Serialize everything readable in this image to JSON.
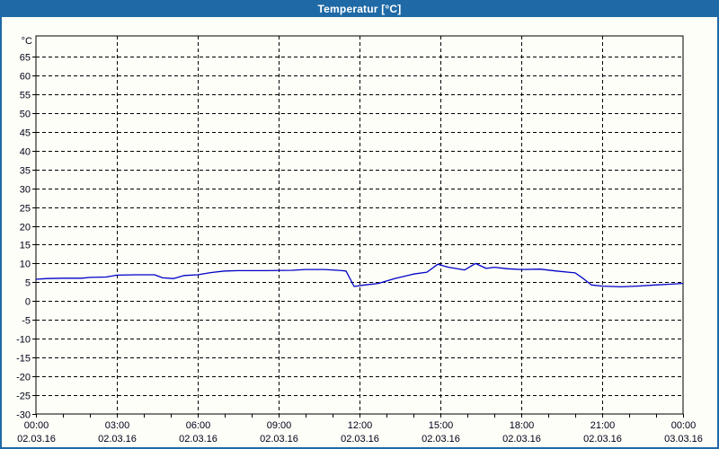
{
  "window": {
    "title": "Temperatur [°C]"
  },
  "colors": {
    "titlebar": "#1F6AA6",
    "window_border": "#1F6AA6",
    "background": "#FCFEF7",
    "plot_bg": "#FCFEF7",
    "axis": "#000000",
    "grid": "#000000",
    "label": "#000018",
    "line": "#0000C8"
  },
  "chart_data": {
    "type": "line",
    "title": "Temperatur [°C]",
    "y_unit": "°C",
    "ylim": [
      -30,
      70.5
    ],
    "y_ticks": [
      -30,
      -25,
      -20,
      -15,
      -10,
      -5,
      0,
      5,
      10,
      15,
      20,
      25,
      30,
      35,
      40,
      45,
      50,
      55,
      60,
      65
    ],
    "grid": true,
    "legend_position": "none",
    "x_hours_range": [
      0,
      24
    ],
    "x_minor_tick_hours": 1,
    "x_major_ticks": [
      {
        "hour": 0,
        "time": "00:00",
        "date": "02.03.16"
      },
      {
        "hour": 3,
        "time": "03:00",
        "date": "02.03.16"
      },
      {
        "hour": 6,
        "time": "06:00",
        "date": "02.03.16"
      },
      {
        "hour": 9,
        "time": "09:00",
        "date": "02.03.16"
      },
      {
        "hour": 12,
        "time": "12:00",
        "date": "02.03.16"
      },
      {
        "hour": 15,
        "time": "15:00",
        "date": "02.03.16"
      },
      {
        "hour": 18,
        "time": "18:00",
        "date": "02.03.16"
      },
      {
        "hour": 21,
        "time": "21:00",
        "date": "02.03.16"
      },
      {
        "hour": 24,
        "time": "00:00",
        "date": "03.03.16"
      }
    ],
    "series": [
      {
        "name": "Temperatur",
        "color": "#0000C8",
        "x_hours": [
          0,
          0.4,
          1,
          1.7,
          2,
          2.6,
          3,
          3.7,
          4.4,
          4.7,
          5.1,
          5.5,
          6,
          6.5,
          7,
          7.5,
          8.5,
          9.5,
          10,
          10.7,
          11.2,
          11.5,
          11.8,
          12.2,
          12.7,
          13.3,
          14,
          14.5,
          14.9,
          15.3,
          15.9,
          16.3,
          16.7,
          17,
          17.5,
          18,
          18.7,
          19.3,
          20,
          20.3,
          20.6,
          21,
          21.7,
          22.3,
          23,
          23.5,
          24
        ],
        "values": [
          5.8,
          6.0,
          6.1,
          6.1,
          6.3,
          6.4,
          6.9,
          7.0,
          7.0,
          6.2,
          6.0,
          6.8,
          7.0,
          7.6,
          8.0,
          8.1,
          8.1,
          8.2,
          8.4,
          8.4,
          8.2,
          8.0,
          3.9,
          4.3,
          4.7,
          6.0,
          7.2,
          7.7,
          9.8,
          9.0,
          8.3,
          10.0,
          8.7,
          9.0,
          8.6,
          8.4,
          8.5,
          8.0,
          7.5,
          6.0,
          4.3,
          4.0,
          3.8,
          4.0,
          4.3,
          4.5,
          4.7
        ]
      }
    ]
  }
}
